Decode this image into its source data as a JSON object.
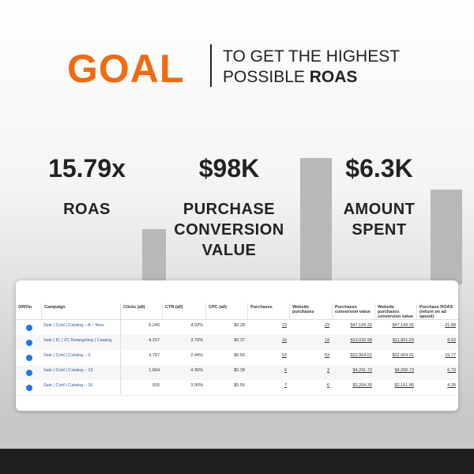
{
  "header": {
    "goal": "GOAL",
    "line1": "TO GET THE HIGHEST",
    "line2": "POSSIBLE",
    "line2_bold": "ROAS"
  },
  "stats": [
    {
      "value": "15.79x",
      "label": "ROAS"
    },
    {
      "value": "$98K",
      "label": "PURCHASE CONVERSION VALUE"
    },
    {
      "value": "$6.3K",
      "label": "AMOUNT SPENT"
    }
  ],
  "table": {
    "columns": [
      "Off/On",
      "Campaign",
      "Clicks (all)",
      "CTR (all)",
      "CPC (all)",
      "Purchases",
      "Website purchases",
      "Purchases conversion value",
      "Website purchases conversion value",
      "Purchase ROAS (return on ad spend)"
    ],
    "rows": [
      [
        "Sale | Cold | Catalog – A – New",
        "5,240",
        "4.02%",
        "$0.28",
        "23",
        "23",
        "$47,109.32",
        "$47,109.32",
        "31.88"
      ],
      [
        "Sale | IC | VC Retargeting | Catalog",
        "4,157",
        "3.79%",
        "$0.37",
        "16",
        "14",
        "$13,032.98",
        "$11,951.29",
        "8.53"
      ],
      [
        "Sale | Cold | Catalog – 9",
        "3,797",
        "2.44%",
        "$0.55",
        "53",
        "53",
        "$32,904.01",
        "$32,904.01",
        "15.77"
      ],
      [
        "Sale | Cold | Catalog – 13",
        "1,664",
        "4.36%",
        "$0.38",
        "6",
        "3",
        "$4,291.72",
        "$4,206.73",
        "6.73"
      ],
      [
        "Sale | Cold | Catalog – 16",
        "915",
        "3.90%",
        "$0.55",
        "7",
        "6",
        "$2,204.35",
        "$2,161.86",
        "4.39"
      ]
    ]
  }
}
